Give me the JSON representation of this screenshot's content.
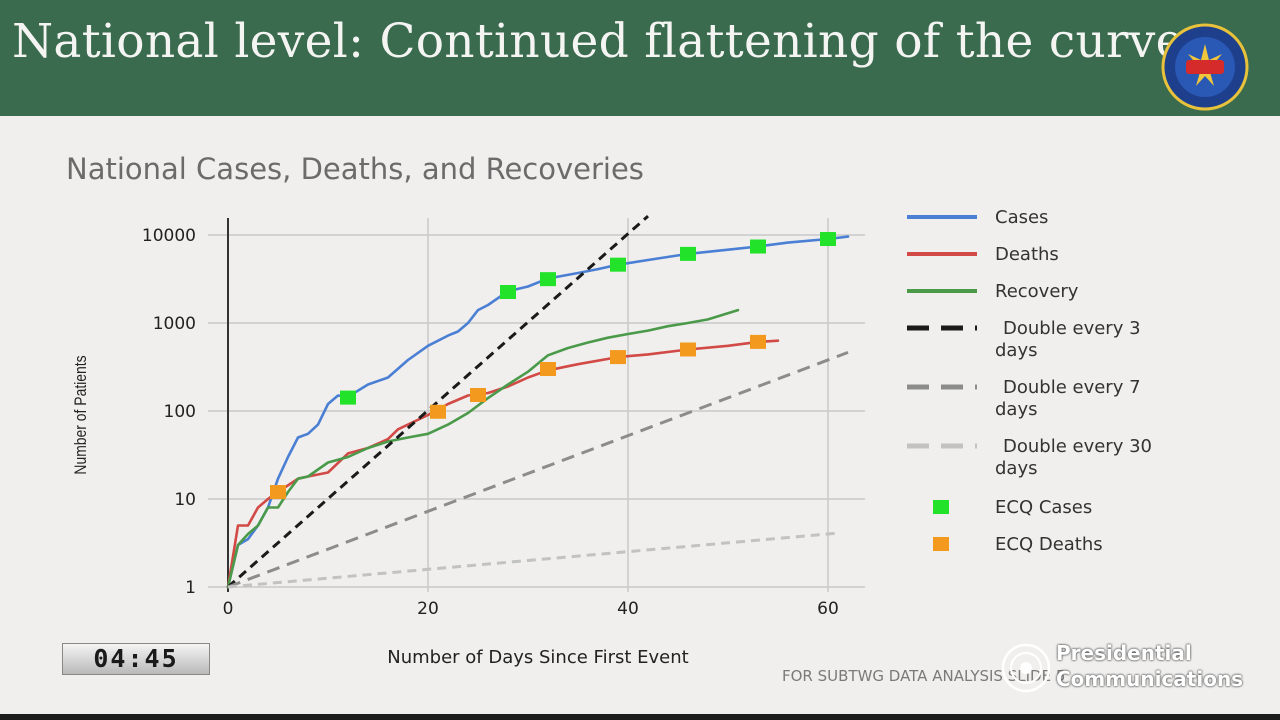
{
  "banner": {
    "title": "National level: Continued flattening of the curve"
  },
  "timer": "04:45",
  "footnote": "FOR SUBTWG DATA ANALYSIS SLIDE 5",
  "watermark": {
    "line1": "Presidential",
    "line2": "Communications"
  },
  "chart_data": {
    "type": "line",
    "title": "National Cases, Deaths, and Recoveries",
    "xlabel": "Number of Days Since First Event",
    "ylabel": "Number of Patients",
    "xlim": [
      0,
      63
    ],
    "ylim": [
      1,
      10000
    ],
    "yscale": "log",
    "x_ticks": [
      0,
      20,
      40,
      60
    ],
    "y_ticks": [
      1,
      10,
      100,
      1000,
      10000
    ],
    "x_tick_labels": [
      "0",
      "20",
      "40",
      "60"
    ],
    "y_tick_labels": [
      "1",
      "10",
      "100",
      "1000",
      "10000"
    ],
    "grid": true,
    "legend_position": "right",
    "series": [
      {
        "name": "Cases",
        "color": "#4a7fd4",
        "style": "solid",
        "x": [
          0,
          1,
          2,
          3,
          4,
          5,
          6,
          7,
          8,
          9,
          10,
          11,
          12,
          14,
          16,
          18,
          20,
          22,
          23,
          24,
          25,
          26,
          28,
          30,
          32,
          35,
          37,
          39,
          42,
          46,
          50,
          53,
          56,
          60,
          62
        ],
        "y": [
          1,
          3,
          3.5,
          5,
          8,
          17,
          30,
          50,
          55,
          70,
          120,
          150,
          145,
          200,
          240,
          380,
          550,
          720,
          800,
          1000,
          1400,
          1600,
          2300,
          2600,
          3200,
          3700,
          4100,
          4600,
          5200,
          6100,
          6800,
          7400,
          8200,
          9000,
          9600
        ]
      },
      {
        "name": "Deaths",
        "color": "#d24a45",
        "style": "solid",
        "x": [
          0,
          1,
          2,
          3,
          4,
          5,
          7,
          8,
          10,
          12,
          14,
          16,
          17,
          18,
          20,
          22,
          24,
          26,
          28,
          30,
          32,
          35,
          39,
          42,
          46,
          50,
          53,
          55
        ],
        "y": [
          1,
          5,
          5,
          8,
          10,
          12,
          17,
          18,
          20,
          33,
          38,
          48,
          62,
          70,
          90,
          120,
          150,
          160,
          190,
          240,
          290,
          340,
          410,
          440,
          500,
          550,
          610,
          630
        ]
      },
      {
        "name": "Recovery",
        "color": "#4a9a4a",
        "style": "solid",
        "x": [
          0,
          1,
          2,
          3,
          4,
          5,
          6,
          7,
          8,
          10,
          12,
          14,
          16,
          18,
          20,
          22,
          24,
          26,
          28,
          30,
          32,
          34,
          36,
          38,
          40,
          42,
          44,
          46,
          48,
          51
        ],
        "y": [
          1,
          3,
          4,
          5,
          8,
          8,
          12,
          17,
          18,
          26,
          30,
          38,
          45,
          50,
          55,
          70,
          95,
          140,
          200,
          280,
          430,
          520,
          600,
          680,
          750,
          820,
          920,
          1000,
          1100,
          1400
        ]
      },
      {
        "name": "Double every  3 days",
        "color": "#1a1a1a",
        "style": "dashed",
        "x": [
          0,
          42
        ],
        "y": [
          1,
          16384
        ]
      },
      {
        "name": "Double every  7 days",
        "color": "#8c8c8c",
        "style": "dashed",
        "x": [
          0,
          62
        ],
        "y": [
          1,
          463
        ]
      },
      {
        "name": "Double every 30 days",
        "color": "#c2c2c2",
        "style": "dashed",
        "x": [
          0,
          61
        ],
        "y": [
          1,
          4.1
        ]
      },
      {
        "name": "ECQ Cases",
        "color": "#22e22a",
        "style": "marker",
        "x": [
          12,
          28,
          32,
          39,
          46,
          53,
          60
        ],
        "y": [
          142,
          2250,
          3150,
          4600,
          6100,
          7400,
          9000
        ]
      },
      {
        "name": "ECQ Deaths",
        "color": "#f39a1e",
        "style": "marker",
        "x": [
          5,
          21,
          25,
          32,
          39,
          46,
          53
        ],
        "y": [
          12,
          98,
          152,
          300,
          410,
          500,
          610
        ]
      }
    ]
  }
}
